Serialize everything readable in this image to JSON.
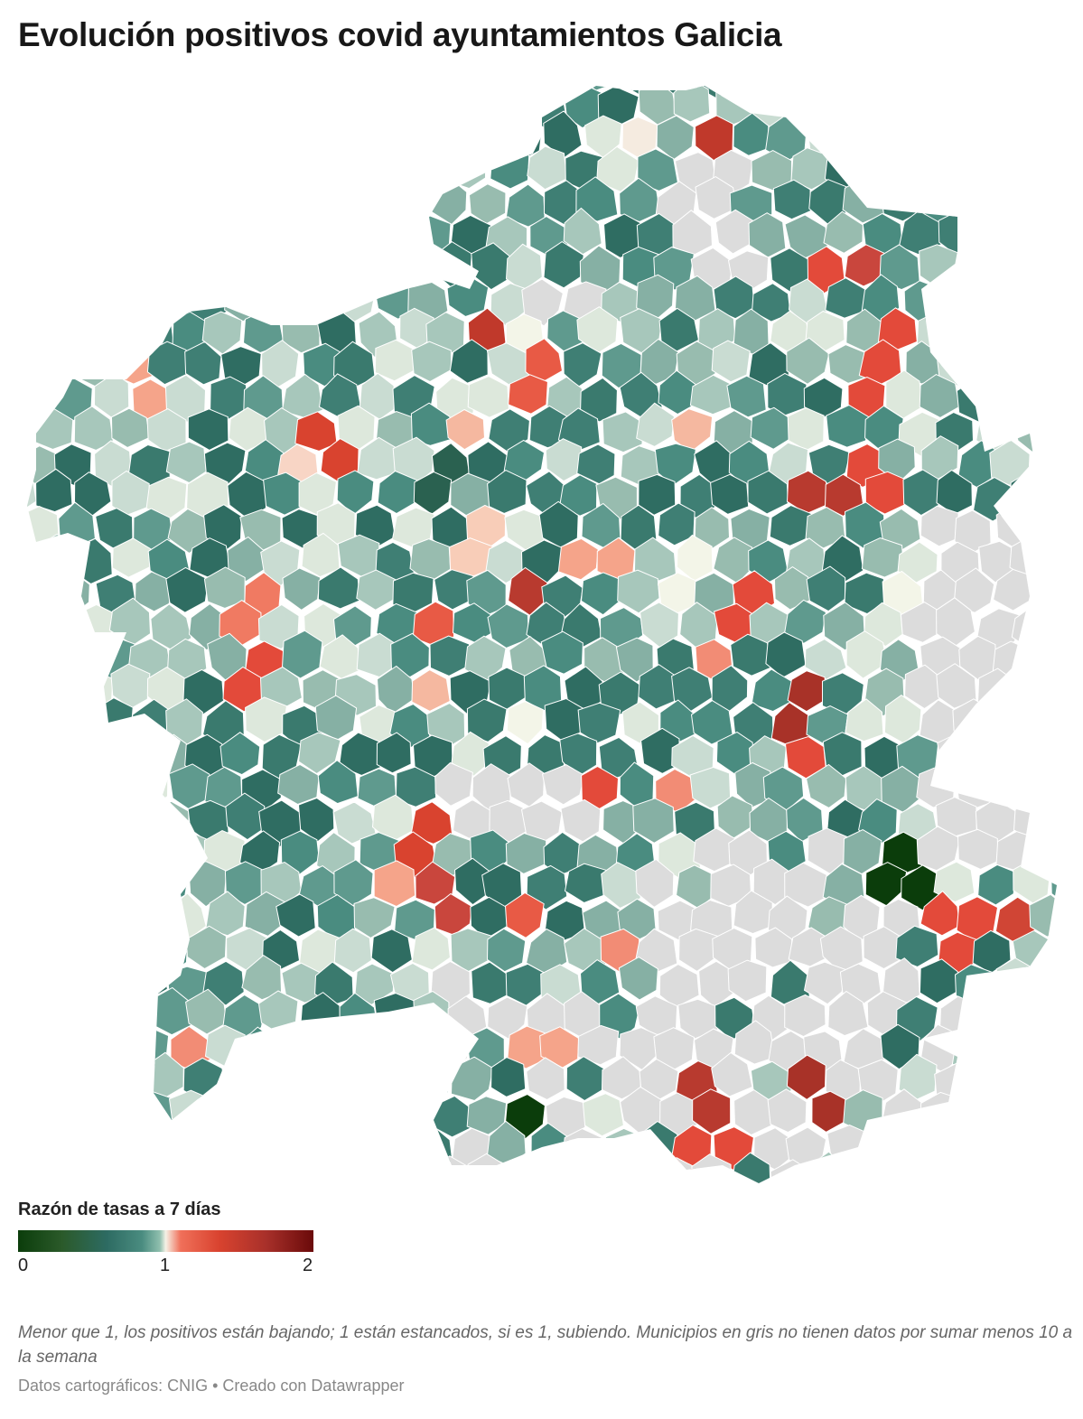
{
  "title": "Evolución positivos covid ayuntamientos Galicia",
  "legend": {
    "title": "Razón de tasas a 7 días",
    "ticks": [
      "0",
      "1",
      "2"
    ],
    "scale": {
      "min": 0,
      "mid": 1,
      "max": 2
    },
    "colors": {
      "low": "#0b3d0b",
      "mid_low": "#2d6b62",
      "neutral": "#f5f2e6",
      "mid_high": "#e34a3a",
      "high": "#6a0a0a",
      "no_data": "#dcdcdc"
    }
  },
  "note": "Menor que 1, los positivos están bajando; 1 están estancados, si es 1, subiendo. Municipios en gris no tienen datos por sumar menos 10 a la semana",
  "source": "Datos cartográficos: CNIG • Creado con Datawrapper"
}
